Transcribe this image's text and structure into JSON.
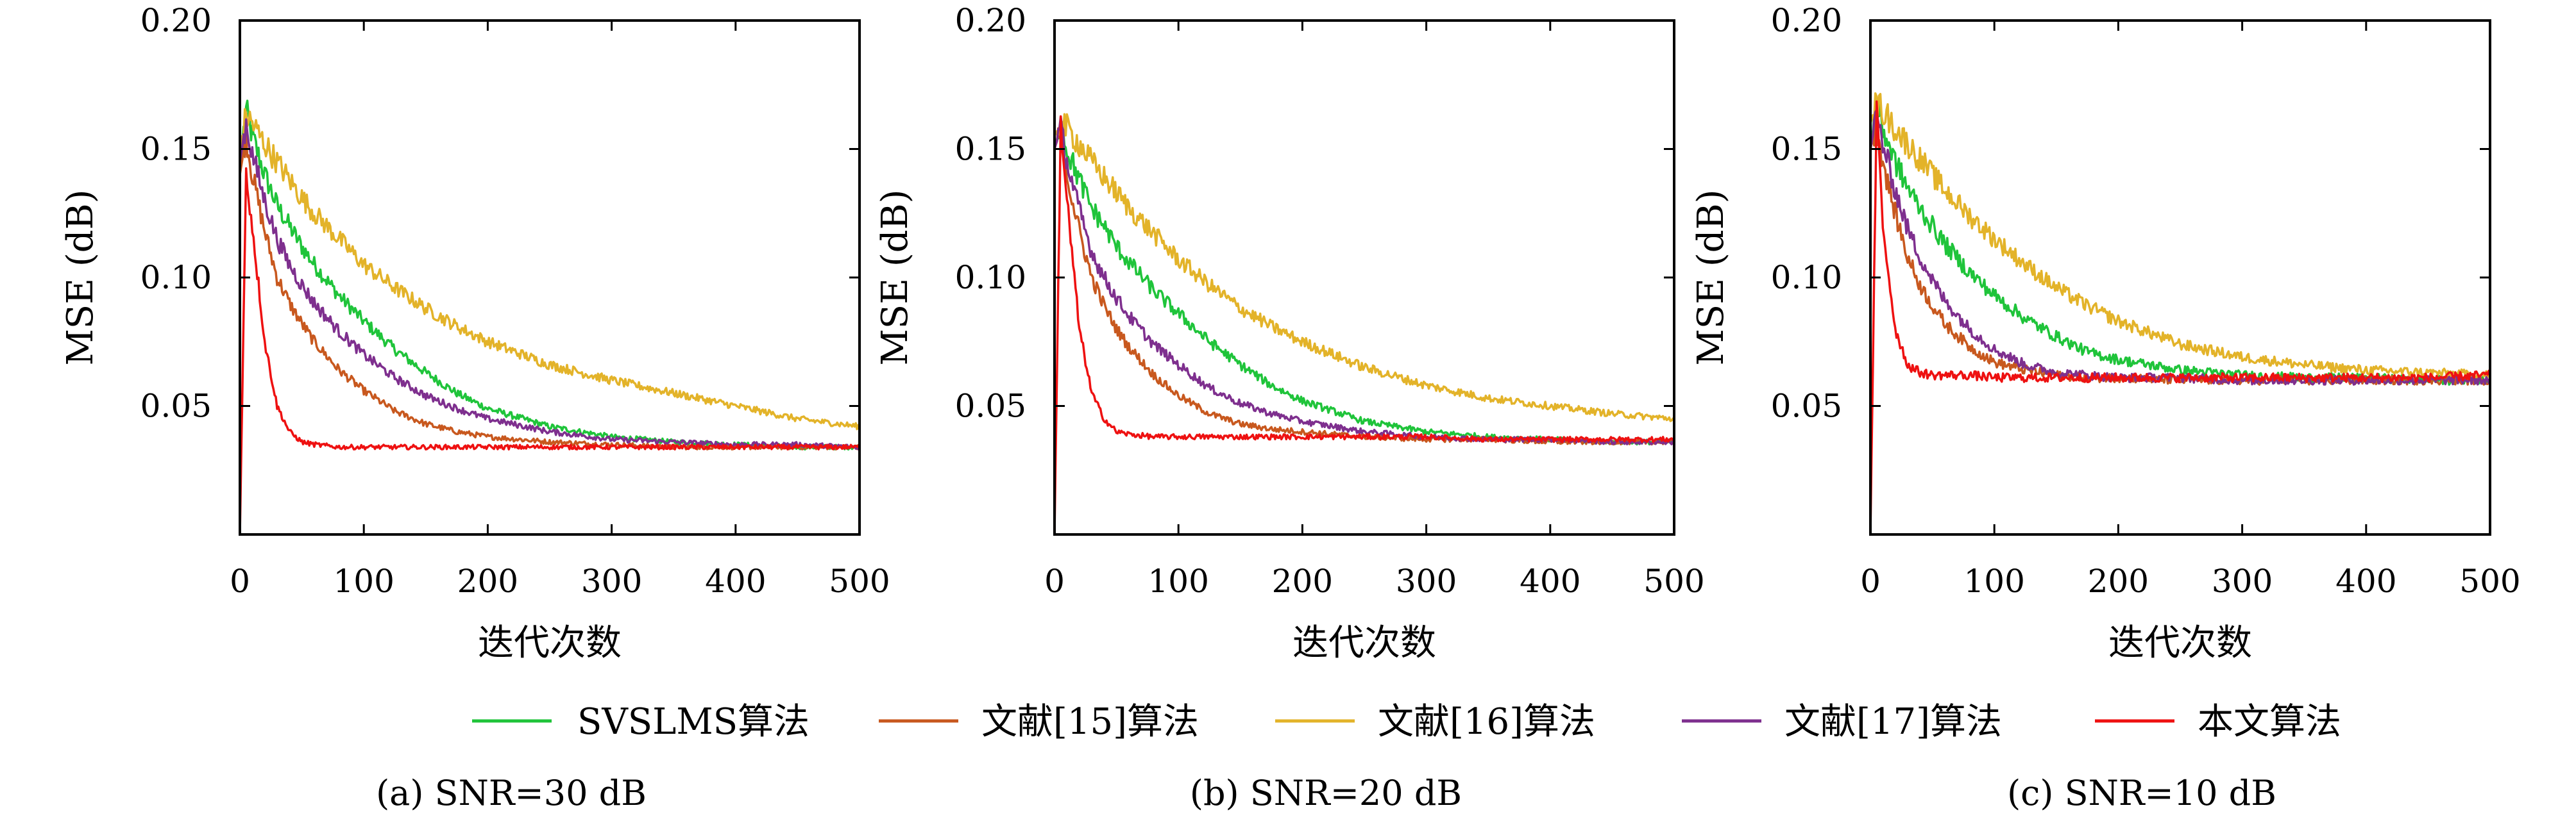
{
  "chart_data": [
    {
      "type": "line",
      "caption": "(a) SNR=30 dB",
      "xlabel": "迭代次数",
      "ylabel": "MSE (dB)",
      "xlim": [
        0,
        500
      ],
      "ylim": [
        0,
        0.2
      ],
      "xticks": [
        0,
        100,
        200,
        300,
        400,
        500
      ],
      "yticks": [
        0.05,
        0.1,
        0.15,
        0.2
      ],
      "ytick_labels": [
        "0.05",
        "0.10",
        "0.15",
        "0.20"
      ],
      "x": [
        0,
        5,
        10,
        20,
        30,
        40,
        50,
        60,
        80,
        100,
        125,
        150,
        175,
        200,
        250,
        300,
        350,
        400,
        450,
        500
      ],
      "series": [
        {
          "name": "SVSLMS算法",
          "color": "#1fc43a",
          "values": [
            0.145,
            0.165,
            0.155,
            0.14,
            0.128,
            0.12,
            0.112,
            0.105,
            0.093,
            0.083,
            0.072,
            0.063,
            0.055,
            0.049,
            0.042,
            0.038,
            0.036,
            0.035,
            0.034,
            0.034
          ]
        },
        {
          "name": "文献[15]算法",
          "color": "#c8581e",
          "values": [
            0.14,
            0.155,
            0.14,
            0.118,
            0.1,
            0.09,
            0.082,
            0.075,
            0.064,
            0.056,
            0.048,
            0.043,
            0.04,
            0.038,
            0.036,
            0.035,
            0.034,
            0.034,
            0.034,
            0.034
          ]
        },
        {
          "name": "文献[16]算法",
          "color": "#e3b329",
          "values": [
            0.15,
            0.163,
            0.16,
            0.152,
            0.145,
            0.138,
            0.131,
            0.125,
            0.115,
            0.105,
            0.096,
            0.088,
            0.081,
            0.075,
            0.066,
            0.06,
            0.055,
            0.05,
            0.045,
            0.042
          ]
        },
        {
          "name": "文献[17]算法",
          "color": "#7e2f8e",
          "values": [
            0.145,
            0.16,
            0.148,
            0.13,
            0.115,
            0.105,
            0.097,
            0.09,
            0.079,
            0.07,
            0.061,
            0.054,
            0.049,
            0.045,
            0.04,
            0.037,
            0.036,
            0.035,
            0.035,
            0.034
          ]
        },
        {
          "name": "本文算法",
          "color": "#ee1111",
          "values": [
            0.0,
            0.14,
            0.12,
            0.075,
            0.05,
            0.04,
            0.036,
            0.035,
            0.034,
            0.034,
            0.034,
            0.034,
            0.034,
            0.034,
            0.034,
            0.034,
            0.034,
            0.034,
            0.034,
            0.034
          ]
        }
      ]
    },
    {
      "type": "line",
      "caption": "(b) SNR=20 dB",
      "xlabel": "迭代次数",
      "ylabel": "MSE (dB)",
      "xlim": [
        0,
        500
      ],
      "ylim": [
        0,
        0.2
      ],
      "xticks": [
        0,
        100,
        200,
        300,
        400,
        500
      ],
      "yticks": [
        0.05,
        0.1,
        0.15,
        0.2
      ],
      "ytick_labels": [
        "0.05",
        "0.10",
        "0.15",
        "0.20"
      ],
      "x": [
        0,
        5,
        10,
        20,
        30,
        40,
        50,
        60,
        80,
        100,
        125,
        150,
        175,
        200,
        250,
        300,
        350,
        400,
        450,
        500
      ],
      "series": [
        {
          "name": "SVSLMS算法",
          "color": "#1fc43a",
          "values": [
            0.15,
            0.16,
            0.15,
            0.138,
            0.127,
            0.12,
            0.112,
            0.106,
            0.095,
            0.086,
            0.075,
            0.066,
            0.058,
            0.052,
            0.044,
            0.04,
            0.038,
            0.037,
            0.036,
            0.036
          ]
        },
        {
          "name": "文献[15]算法",
          "color": "#c8581e",
          "values": [
            0.15,
            0.158,
            0.14,
            0.118,
            0.1,
            0.089,
            0.08,
            0.073,
            0.062,
            0.054,
            0.047,
            0.043,
            0.041,
            0.04,
            0.038,
            0.037,
            0.037,
            0.036,
            0.036,
            0.036
          ]
        },
        {
          "name": "文献[16]算法",
          "color": "#e3b329",
          "values": [
            0.155,
            0.16,
            0.158,
            0.152,
            0.145,
            0.139,
            0.133,
            0.127,
            0.117,
            0.107,
            0.097,
            0.088,
            0.081,
            0.075,
            0.065,
            0.058,
            0.053,
            0.05,
            0.047,
            0.045
          ]
        },
        {
          "name": "文献[17]算法",
          "color": "#7e2f8e",
          "values": [
            0.15,
            0.158,
            0.145,
            0.126,
            0.11,
            0.1,
            0.092,
            0.085,
            0.074,
            0.066,
            0.057,
            0.051,
            0.047,
            0.044,
            0.04,
            0.038,
            0.037,
            0.037,
            0.036,
            0.036
          ]
        },
        {
          "name": "本文算法",
          "color": "#ee1111",
          "values": [
            0.0,
            0.16,
            0.13,
            0.08,
            0.055,
            0.045,
            0.04,
            0.039,
            0.038,
            0.038,
            0.038,
            0.038,
            0.038,
            0.038,
            0.038,
            0.038,
            0.037,
            0.037,
            0.037,
            0.037
          ]
        }
      ]
    },
    {
      "type": "line",
      "caption": "(c) SNR=10 dB",
      "xlabel": "迭代次数",
      "ylabel": "MSE (dB)",
      "xlim": [
        0,
        500
      ],
      "ylim": [
        0,
        0.2
      ],
      "xticks": [
        0,
        100,
        200,
        300,
        400,
        500
      ],
      "yticks": [
        0.05,
        0.1,
        0.15,
        0.2
      ],
      "ytick_labels": [
        "0.05",
        "0.10",
        "0.15",
        "0.20"
      ],
      "x": [
        0,
        5,
        10,
        20,
        30,
        40,
        50,
        60,
        80,
        100,
        125,
        150,
        175,
        200,
        250,
        300,
        350,
        400,
        450,
        500
      ],
      "series": [
        {
          "name": "SVSLMS算法",
          "color": "#1fc43a",
          "values": [
            0.15,
            0.168,
            0.158,
            0.145,
            0.135,
            0.127,
            0.12,
            0.113,
            0.102,
            0.093,
            0.084,
            0.077,
            0.071,
            0.068,
            0.064,
            0.062,
            0.061,
            0.061,
            0.06,
            0.06
          ]
        },
        {
          "name": "文献[15]算法",
          "color": "#c8581e",
          "values": [
            0.15,
            0.16,
            0.145,
            0.125,
            0.108,
            0.097,
            0.089,
            0.082,
            0.073,
            0.067,
            0.064,
            0.062,
            0.061,
            0.061,
            0.06,
            0.06,
            0.06,
            0.06,
            0.06,
            0.06
          ]
        },
        {
          "name": "文献[16]算法",
          "color": "#e3b329",
          "values": [
            0.16,
            0.168,
            0.165,
            0.158,
            0.152,
            0.146,
            0.14,
            0.134,
            0.124,
            0.115,
            0.105,
            0.096,
            0.089,
            0.083,
            0.074,
            0.069,
            0.066,
            0.064,
            0.063,
            0.062
          ]
        },
        {
          "name": "文献[17]算法",
          "color": "#7e2f8e",
          "values": [
            0.15,
            0.163,
            0.152,
            0.134,
            0.119,
            0.108,
            0.099,
            0.091,
            0.08,
            0.072,
            0.066,
            0.063,
            0.062,
            0.061,
            0.061,
            0.06,
            0.06,
            0.06,
            0.06,
            0.06
          ]
        },
        {
          "name": "本文算法",
          "color": "#ee1111",
          "values": [
            0.0,
            0.165,
            0.12,
            0.08,
            0.066,
            0.063,
            0.062,
            0.062,
            0.062,
            0.061,
            0.061,
            0.061,
            0.061,
            0.061,
            0.061,
            0.061,
            0.061,
            0.061,
            0.061,
            0.062
          ]
        }
      ]
    }
  ],
  "legend": {
    "placement": "bottom",
    "entries": [
      {
        "label": "SVSLMS算法",
        "color": "#1fc43a"
      },
      {
        "label": "文献[15]算法",
        "color": "#c8581e"
      },
      {
        "label": "文献[16]算法",
        "color": "#e3b329"
      },
      {
        "label": "文献[17]算法",
        "color": "#7e2f8e"
      },
      {
        "label": "本文算法",
        "color": "#ee1111"
      }
    ]
  }
}
